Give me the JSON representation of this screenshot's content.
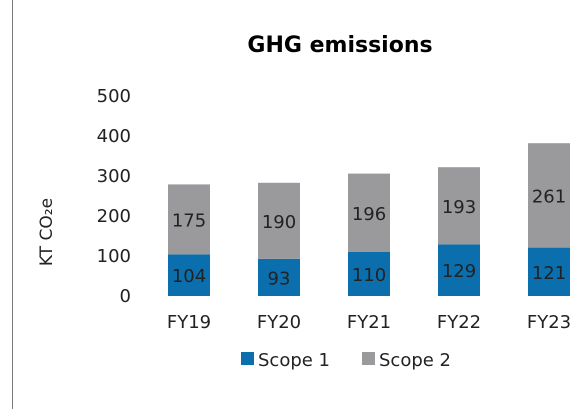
{
  "chart_data": {
    "type": "bar",
    "stacked": true,
    "title": "GHG emissions",
    "ylabel": "KT CO₂e",
    "xlabel": "",
    "ylim": [
      0,
      500
    ],
    "yticks": [
      0,
      100,
      200,
      300,
      400,
      500
    ],
    "categories": [
      "FY19",
      "FY20",
      "FY21",
      "FY22",
      "FY23"
    ],
    "series": [
      {
        "name": "Scope 1",
        "color": "#0b6fae",
        "values": [
          104,
          93,
          110,
          129,
          121
        ]
      },
      {
        "name": "Scope 2",
        "color": "#9a9a9d",
        "values": [
          175,
          190,
          196,
          193,
          261
        ]
      }
    ],
    "grid": false,
    "legend": "bottom-center"
  }
}
